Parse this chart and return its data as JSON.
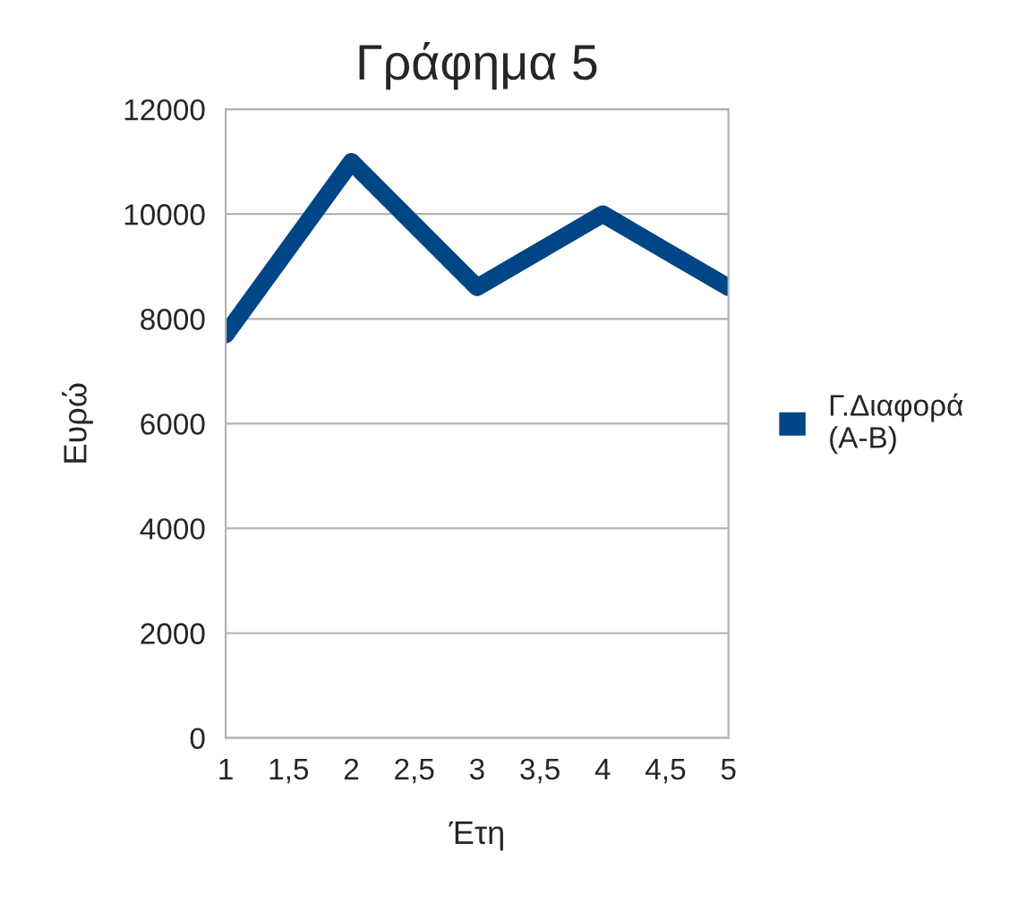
{
  "chart_data": {
    "type": "line",
    "title": "Γράφημα 5",
    "xlabel": "Έτη",
    "ylabel": "Ευρώ",
    "x": [
      1,
      2,
      3,
      4,
      5
    ],
    "series": [
      {
        "name": "Γ.Διαφορά\n(Α-Β)",
        "color": "#004586",
        "values": [
          7700,
          11000,
          8600,
          10000,
          8600
        ]
      }
    ],
    "xlim": [
      1,
      5
    ],
    "xticks": [
      1,
      {
        "value": 1.5,
        "label": "1,5"
      },
      2,
      {
        "value": 2.5,
        "label": "2,5"
      },
      3,
      {
        "value": 3.5,
        "label": "3,5"
      },
      4,
      {
        "value": 4.5,
        "label": "4,5"
      },
      5
    ],
    "ylim": [
      0,
      12000
    ],
    "yticks": [
      0,
      2000,
      4000,
      6000,
      8000,
      10000,
      12000
    ],
    "grid": "y",
    "legend": "right",
    "marker": "none",
    "line_style": "solid"
  }
}
